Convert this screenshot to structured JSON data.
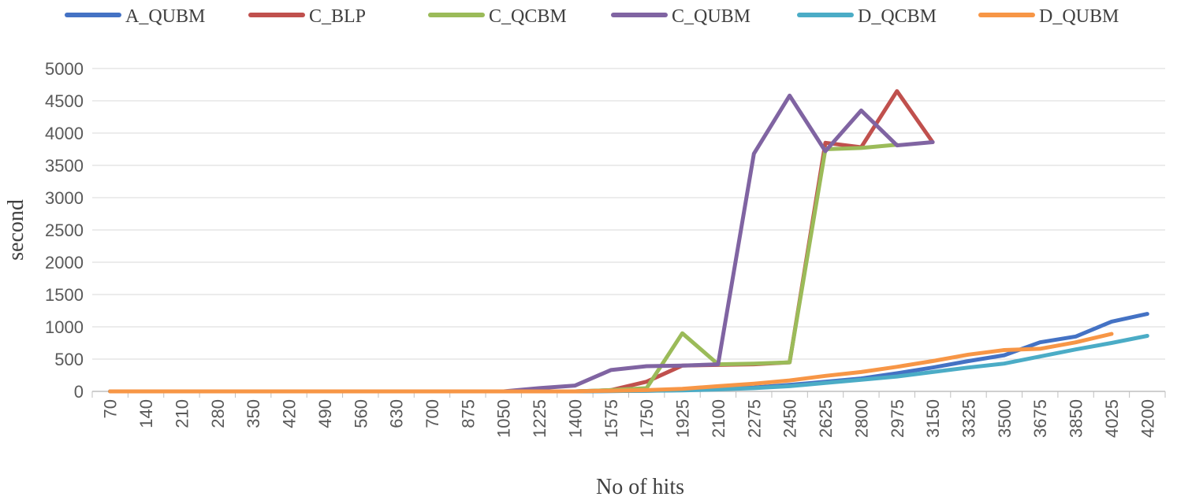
{
  "chart_data": {
    "type": "line",
    "title": "",
    "xlabel": "No of hits",
    "ylabel": "second",
    "ylim": [
      0,
      5000
    ],
    "yticks": [
      0,
      500,
      1000,
      1500,
      2000,
      2500,
      3000,
      3500,
      4000,
      4500,
      5000
    ],
    "grid": true,
    "legend_position": "top",
    "categories": [
      "70",
      "140",
      "210",
      "280",
      "350",
      "420",
      "490",
      "560",
      "630",
      "700",
      "875",
      "1050",
      "1225",
      "1400",
      "1575",
      "1750",
      "1925",
      "2100",
      "2275",
      "2450",
      "2625",
      "2800",
      "2975",
      "3150",
      "3325",
      "3500",
      "3675",
      "3850",
      "4025",
      "4200"
    ],
    "series": [
      {
        "name": "A_QUBM",
        "color": "#4472C4",
        "values": [
          0,
          0,
          0,
          0,
          0,
          0,
          0,
          0,
          0,
          0,
          0,
          0,
          0,
          0,
          5,
          10,
          20,
          40,
          60,
          100,
          150,
          200,
          280,
          370,
          470,
          560,
          760,
          850,
          1080,
          1200
        ]
      },
      {
        "name": "C_BLP",
        "color": "#C0504D",
        "values": [
          0,
          0,
          0,
          0,
          0,
          0,
          0,
          0,
          0,
          0,
          0,
          0,
          0,
          0,
          20,
          150,
          400,
          410,
          420,
          450,
          3850,
          3780,
          4650,
          3860,
          null,
          null,
          null,
          null,
          null,
          null
        ]
      },
      {
        "name": "C_QCBM",
        "color": "#9BBB59",
        "values": [
          0,
          0,
          0,
          0,
          0,
          0,
          0,
          0,
          0,
          0,
          0,
          0,
          0,
          0,
          20,
          50,
          900,
          420,
          430,
          450,
          3750,
          3770,
          3820,
          null,
          null,
          null,
          null,
          null,
          null,
          null
        ]
      },
      {
        "name": "C_QUBM",
        "color": "#8064A2",
        "values": [
          0,
          0,
          0,
          0,
          0,
          0,
          0,
          0,
          0,
          0,
          0,
          0,
          50,
          90,
          330,
          390,
          400,
          420,
          3680,
          4580,
          3720,
          4350,
          3810,
          3860,
          null,
          null,
          null,
          null,
          null,
          null
        ]
      },
      {
        "name": "D_QCBM",
        "color": "#4BACC6",
        "values": [
          0,
          0,
          0,
          0,
          0,
          0,
          0,
          0,
          0,
          0,
          0,
          0,
          0,
          0,
          5,
          10,
          15,
          30,
          50,
          80,
          130,
          180,
          230,
          300,
          370,
          430,
          540,
          650,
          750,
          860
        ]
      },
      {
        "name": "D_QUBM",
        "color": "#F79646",
        "values": [
          0,
          0,
          0,
          0,
          0,
          0,
          0,
          0,
          0,
          0,
          0,
          0,
          0,
          0,
          10,
          20,
          40,
          80,
          120,
          170,
          240,
          300,
          380,
          470,
          570,
          640,
          660,
          760,
          890,
          null
        ]
      }
    ]
  }
}
